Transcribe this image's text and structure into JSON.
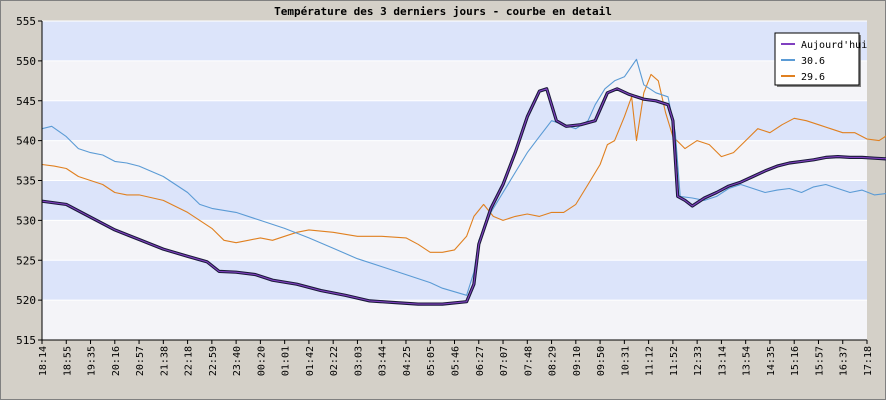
{
  "chart_data": {
    "type": "line",
    "title": "Température des 3 derniers jours - courbe en detail",
    "xlabel": "",
    "ylabel": "",
    "ylim": [
      515,
      555
    ],
    "yticks": [
      515,
      520,
      525,
      530,
      535,
      540,
      545,
      550,
      555
    ],
    "grid": true,
    "legend_position": "top-right",
    "x_ticks": [
      "18:14",
      "18:55",
      "19:35",
      "20:16",
      "20:57",
      "21:38",
      "22:18",
      "22:59",
      "23:40",
      "00:20",
      "01:01",
      "01:42",
      "02:22",
      "03:03",
      "03:44",
      "04:25",
      "05:05",
      "05:46",
      "06:27",
      "07:07",
      "07:48",
      "08:29",
      "09:10",
      "09:50",
      "10:31",
      "11:12",
      "11:52",
      "12:33",
      "13:14",
      "13:54",
      "14:35",
      "15:16",
      "15:57",
      "16:37",
      "17:18"
    ],
    "series": [
      {
        "name": "Aujourd'hui",
        "color": "#8040c0",
        "points": [
          [
            0,
            532.4
          ],
          [
            1,
            532.0
          ],
          [
            1.5,
            531.2
          ],
          [
            2,
            530.4
          ],
          [
            3,
            528.8
          ],
          [
            4,
            527.6
          ],
          [
            5,
            526.4
          ],
          [
            6,
            525.5
          ],
          [
            6.8,
            524.8
          ],
          [
            7.3,
            523.6
          ],
          [
            8,
            523.5
          ],
          [
            8.8,
            523.2
          ],
          [
            9.5,
            522.5
          ],
          [
            10.5,
            522.0
          ],
          [
            11.5,
            521.2
          ],
          [
            12.5,
            520.6
          ],
          [
            13.5,
            519.9
          ],
          [
            14.5,
            519.7
          ],
          [
            15.5,
            519.5
          ],
          [
            16.5,
            519.5
          ],
          [
            17.5,
            519.8
          ],
          [
            17.8,
            522.0
          ],
          [
            18.0,
            527.0
          ],
          [
            18.5,
            531.5
          ],
          [
            19.0,
            534.5
          ],
          [
            19.5,
            538.5
          ],
          [
            20.0,
            543.0
          ],
          [
            20.5,
            546.2
          ],
          [
            20.8,
            546.5
          ],
          [
            21.2,
            542.5
          ],
          [
            21.6,
            541.8
          ],
          [
            22.2,
            542.0
          ],
          [
            22.8,
            542.5
          ],
          [
            23.3,
            546.0
          ],
          [
            23.7,
            546.5
          ],
          [
            24.2,
            545.8
          ],
          [
            24.8,
            545.2
          ],
          [
            25.3,
            545.0
          ],
          [
            25.8,
            544.5
          ],
          [
            26.0,
            542.5
          ],
          [
            26.2,
            533.0
          ],
          [
            26.5,
            532.5
          ],
          [
            26.8,
            531.8
          ],
          [
            27.3,
            532.8
          ],
          [
            27.8,
            533.5
          ],
          [
            28.3,
            534.3
          ],
          [
            28.8,
            534.8
          ],
          [
            29.3,
            535.5
          ],
          [
            29.8,
            536.2
          ],
          [
            30.3,
            536.8
          ],
          [
            30.8,
            537.2
          ],
          [
            31.3,
            537.4
          ],
          [
            31.8,
            537.6
          ],
          [
            32.3,
            537.9
          ],
          [
            32.8,
            538.0
          ],
          [
            33.3,
            537.9
          ],
          [
            33.8,
            537.9
          ],
          [
            34.3,
            537.8
          ],
          [
            34.9,
            537.7
          ]
        ]
      },
      {
        "name": "30.6",
        "color": "#5b9bd5",
        "points": [
          [
            0,
            541.5
          ],
          [
            0.4,
            541.8
          ],
          [
            1,
            540.5
          ],
          [
            1.5,
            539.0
          ],
          [
            2,
            538.5
          ],
          [
            2.5,
            538.2
          ],
          [
            3,
            537.4
          ],
          [
            3.5,
            537.2
          ],
          [
            4,
            536.8
          ],
          [
            5,
            535.5
          ],
          [
            6,
            533.5
          ],
          [
            6.5,
            532.0
          ],
          [
            7,
            531.5
          ],
          [
            8,
            531.0
          ],
          [
            9,
            530.0
          ],
          [
            10,
            529.0
          ],
          [
            11,
            527.8
          ],
          [
            12,
            526.5
          ],
          [
            13,
            525.2
          ],
          [
            14,
            524.2
          ],
          [
            15,
            523.2
          ],
          [
            16,
            522.2
          ],
          [
            16.5,
            521.5
          ],
          [
            17.5,
            520.6
          ],
          [
            17.8,
            523.5
          ],
          [
            18,
            527.5
          ],
          [
            18.5,
            531.0
          ],
          [
            19,
            533.5
          ],
          [
            19.5,
            536.0
          ],
          [
            20,
            538.5
          ],
          [
            20.5,
            540.5
          ],
          [
            21,
            542.5
          ],
          [
            21.5,
            542.0
          ],
          [
            22,
            541.5
          ],
          [
            22.5,
            542.5
          ],
          [
            22.8,
            544.5
          ],
          [
            23.2,
            546.5
          ],
          [
            23.6,
            547.5
          ],
          [
            24,
            548.0
          ],
          [
            24.5,
            550.2
          ],
          [
            24.8,
            547.0
          ],
          [
            25.3,
            546.0
          ],
          [
            25.8,
            545.5
          ],
          [
            26.1,
            541.0
          ],
          [
            26.3,
            533.0
          ],
          [
            26.8,
            532.8
          ],
          [
            27.3,
            532.5
          ],
          [
            27.8,
            533.0
          ],
          [
            28.3,
            534.0
          ],
          [
            28.8,
            534.5
          ],
          [
            29.3,
            534.0
          ],
          [
            29.8,
            533.5
          ],
          [
            30.3,
            533.8
          ],
          [
            30.8,
            534.0
          ],
          [
            31.3,
            533.5
          ],
          [
            31.8,
            534.2
          ],
          [
            32.3,
            534.5
          ],
          [
            32.8,
            534.0
          ],
          [
            33.3,
            533.5
          ],
          [
            33.8,
            533.8
          ],
          [
            34.3,
            533.2
          ],
          [
            34.9,
            533.4
          ]
        ]
      },
      {
        "name": "29.6",
        "color": "#e08020",
        "points": [
          [
            0,
            537.0
          ],
          [
            0.5,
            536.8
          ],
          [
            1,
            536.5
          ],
          [
            1.5,
            535.5
          ],
          [
            2,
            535.0
          ],
          [
            2.5,
            534.5
          ],
          [
            3,
            533.5
          ],
          [
            3.5,
            533.2
          ],
          [
            4,
            533.2
          ],
          [
            5,
            532.5
          ],
          [
            6,
            531.0
          ],
          [
            7,
            529.0
          ],
          [
            7.5,
            527.5
          ],
          [
            8,
            527.2
          ],
          [
            8.5,
            527.5
          ],
          [
            9,
            527.8
          ],
          [
            9.5,
            527.5
          ],
          [
            10,
            528.0
          ],
          [
            10.5,
            528.5
          ],
          [
            11,
            528.8
          ],
          [
            12,
            528.5
          ],
          [
            13,
            528.0
          ],
          [
            14,
            528.0
          ],
          [
            15,
            527.8
          ],
          [
            15.5,
            527.0
          ],
          [
            16,
            526.0
          ],
          [
            16.5,
            526.0
          ],
          [
            17,
            526.3
          ],
          [
            17.5,
            528.0
          ],
          [
            17.8,
            530.5
          ],
          [
            18.2,
            532.0
          ],
          [
            18.6,
            530.5
          ],
          [
            19,
            530.0
          ],
          [
            19.5,
            530.5
          ],
          [
            20,
            530.8
          ],
          [
            20.5,
            530.5
          ],
          [
            21,
            531.0
          ],
          [
            21.5,
            531.0
          ],
          [
            22,
            532.0
          ],
          [
            22.5,
            534.5
          ],
          [
            23,
            537.0
          ],
          [
            23.3,
            539.5
          ],
          [
            23.6,
            540.0
          ],
          [
            24,
            543.0
          ],
          [
            24.3,
            545.5
          ],
          [
            24.5,
            540.0
          ],
          [
            24.8,
            546.0
          ],
          [
            25.1,
            548.3
          ],
          [
            25.4,
            547.5
          ],
          [
            25.7,
            543.5
          ],
          [
            26,
            540.5
          ],
          [
            26.5,
            539.0
          ],
          [
            27,
            540.0
          ],
          [
            27.5,
            539.5
          ],
          [
            28,
            538.0
          ],
          [
            28.5,
            538.5
          ],
          [
            29,
            540.0
          ],
          [
            29.5,
            541.5
          ],
          [
            30,
            541.0
          ],
          [
            30.5,
            542.0
          ],
          [
            31,
            542.8
          ],
          [
            31.5,
            542.5
          ],
          [
            32,
            542.0
          ],
          [
            32.5,
            541.5
          ],
          [
            33,
            541.0
          ],
          [
            33.5,
            541.0
          ],
          [
            34,
            540.2
          ],
          [
            34.5,
            540.0
          ],
          [
            34.9,
            540.8
          ]
        ]
      }
    ]
  }
}
